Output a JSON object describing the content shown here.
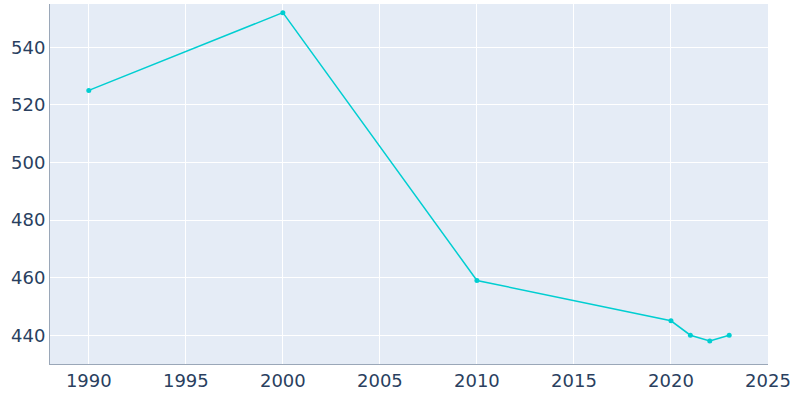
{
  "chart_data": {
    "type": "line",
    "x": [
      1990,
      2000,
      2010,
      2020,
      2021,
      2022,
      2023
    ],
    "values": [
      525,
      552,
      459,
      445,
      440,
      438,
      440
    ],
    "color": "#00ced1",
    "marker": "circle",
    "xlim": [
      1988,
      2025
    ],
    "xticks": [
      1990,
      1995,
      2000,
      2005,
      2010,
      2015,
      2020,
      2025
    ],
    "ylim": [
      430,
      555
    ],
    "yticks": [
      440,
      460,
      480,
      500,
      520,
      540
    ],
    "grid": true
  }
}
